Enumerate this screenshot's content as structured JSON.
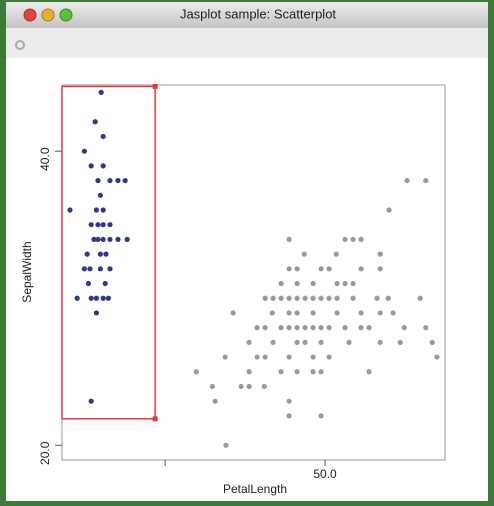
{
  "window": {
    "title": "Jasplot sample: Scatterplot"
  },
  "chart_data": {
    "type": "scatter",
    "x_label": "PetalLength",
    "y_label": "SepalWidth",
    "xlim": [
      17.1,
      65
    ],
    "ylim": [
      19,
      44.5
    ],
    "xticks": [
      {
        "value": 50,
        "label": "50.0"
      }
    ],
    "minor_xticks": [
      30
    ],
    "yticks": [
      {
        "value": 20,
        "label": "20.0"
      },
      {
        "value": 40,
        "label": "40.0"
      }
    ],
    "selection": {
      "x": [
        17.1,
        28.75
      ],
      "y": [
        21.8,
        44.4
      ],
      "color": "#e53b3b"
    },
    "series": [
      {
        "color": "#2b3a8c",
        "x": [
          22,
          21.25,
          22.25,
          19.9,
          20.75,
          22.25,
          21.6,
          23.1,
          24.1,
          25,
          21.9,
          18.1,
          21.4,
          22.25,
          20.75,
          21.6,
          22.25,
          23.1,
          21.1,
          21.6,
          22.25,
          23.1,
          24.1,
          25.25,
          20.25,
          21.9,
          22.6,
          19.9,
          20.6,
          21.9,
          23.1,
          20.4,
          22.5,
          19,
          20.75,
          21.4,
          22.25,
          22.9,
          21.4,
          20.75
        ],
        "y": [
          44,
          42,
          41,
          40,
          39,
          39,
          38,
          38,
          38,
          38,
          37,
          36,
          36,
          36,
          35,
          35,
          35,
          35,
          34,
          34,
          34,
          34,
          34,
          34,
          33,
          33,
          33,
          32,
          32,
          32,
          32,
          31,
          31,
          30,
          30,
          30,
          30,
          30,
          29,
          23
        ]
      },
      {
        "color": "#9a9a9a",
        "x": [
          60.25,
          62.6,
          58,
          45.5,
          52.5,
          53.5,
          54.5,
          47.4,
          51.4,
          56.9,
          45.5,
          46.5,
          49.5,
          50.5,
          54.5,
          56.9,
          44.5,
          46.5,
          48.5,
          51.5,
          52.5,
          53.5,
          42.5,
          43.5,
          44.5,
          45.5,
          46.5,
          47.5,
          48.5,
          49.5,
          50.5,
          51.5,
          53.5,
          56.5,
          57.9,
          61.9,
          38.5,
          43.4,
          45.5,
          46.5,
          48.5,
          51.5,
          54.5,
          56.9,
          58.5,
          41.5,
          42.5,
          44.5,
          45.5,
          46.5,
          47.5,
          48.5,
          49.5,
          50.5,
          52.5,
          54.5,
          55.5,
          59.9,
          62.6,
          40.5,
          43.5,
          46.5,
          47.5,
          49.5,
          53,
          56.9,
          59.4,
          63.4,
          37.5,
          41.5,
          42.5,
          45.5,
          48.5,
          50.5,
          64,
          33.9,
          40.5,
          44.5,
          46.5,
          48.5,
          49.5,
          55.5,
          35.9,
          39.5,
          40.5,
          42.4,
          36.25,
          45.5,
          45.5,
          49.5,
          37.6
        ],
        "y": [
          38,
          38,
          36,
          34,
          34,
          34,
          34,
          33,
          33,
          33,
          32,
          32,
          32,
          32,
          32,
          32,
          31,
          31,
          31,
          31,
          31,
          31,
          30,
          30,
          30,
          30,
          30,
          30,
          30,
          30,
          30,
          30,
          30,
          30,
          30,
          30,
          29,
          29,
          29,
          29,
          29,
          29,
          29,
          29,
          29,
          28,
          28,
          28,
          28,
          28,
          28,
          28,
          28,
          28,
          28,
          28,
          28,
          28,
          28,
          27,
          27,
          27,
          27,
          27,
          27,
          27,
          27,
          27,
          26,
          26,
          26,
          26,
          26,
          26,
          26,
          25,
          25,
          25,
          25,
          25,
          25,
          25,
          24,
          24,
          24,
          24,
          23,
          23,
          22,
          22,
          20
        ]
      }
    ]
  }
}
